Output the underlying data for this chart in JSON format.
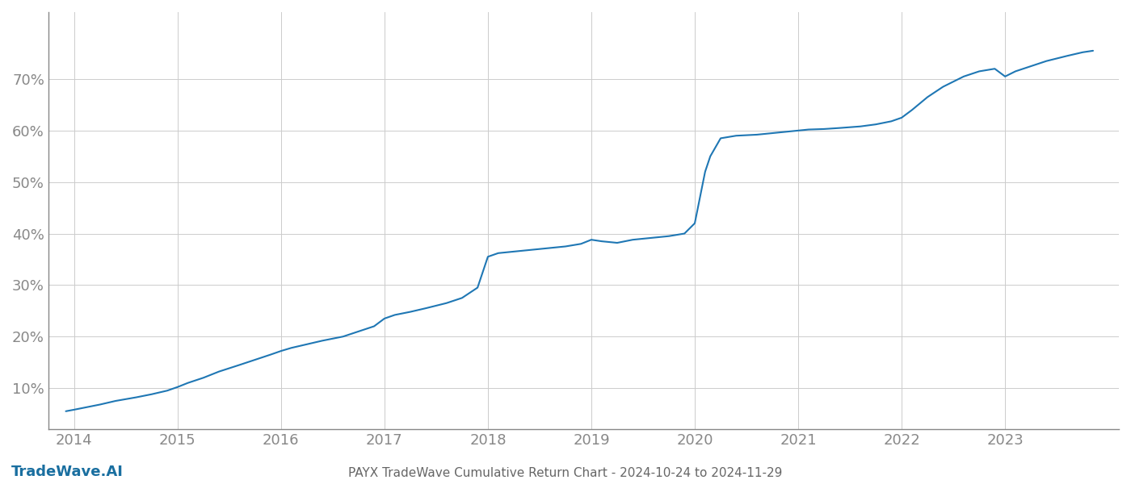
{
  "title": "PAYX TradeWave Cumulative Return Chart - 2024-10-24 to 2024-11-29",
  "watermark": "TradeWave.AI",
  "line_color": "#1f77b4",
  "background_color": "#ffffff",
  "grid_color": "#cccccc",
  "x_years": [
    2013.92,
    2014.0,
    2014.1,
    2014.25,
    2014.4,
    2014.6,
    2014.75,
    2014.9,
    2015.0,
    2015.1,
    2015.25,
    2015.4,
    2015.6,
    2015.75,
    2015.9,
    2016.0,
    2016.1,
    2016.25,
    2016.4,
    2016.6,
    2016.75,
    2016.9,
    2017.0,
    2017.1,
    2017.25,
    2017.4,
    2017.6,
    2017.75,
    2017.9,
    2018.0,
    2018.1,
    2018.25,
    2018.4,
    2018.6,
    2018.75,
    2018.9,
    2019.0,
    2019.1,
    2019.25,
    2019.4,
    2019.6,
    2019.75,
    2019.9,
    2020.0,
    2020.05,
    2020.1,
    2020.15,
    2020.25,
    2020.4,
    2020.6,
    2020.75,
    2020.9,
    2021.0,
    2021.1,
    2021.25,
    2021.4,
    2021.6,
    2021.75,
    2021.9,
    2022.0,
    2022.1,
    2022.25,
    2022.4,
    2022.6,
    2022.75,
    2022.9,
    2023.0,
    2023.1,
    2023.25,
    2023.4,
    2023.6,
    2023.75,
    2023.85
  ],
  "y_values": [
    5.5,
    5.8,
    6.2,
    6.8,
    7.5,
    8.2,
    8.8,
    9.5,
    10.2,
    11.0,
    12.0,
    13.2,
    14.5,
    15.5,
    16.5,
    17.2,
    17.8,
    18.5,
    19.2,
    20.0,
    21.0,
    22.0,
    23.5,
    24.2,
    24.8,
    25.5,
    26.5,
    27.5,
    29.5,
    35.5,
    36.2,
    36.5,
    36.8,
    37.2,
    37.5,
    38.0,
    38.8,
    38.5,
    38.2,
    38.8,
    39.2,
    39.5,
    40.0,
    42.0,
    47.0,
    52.0,
    55.0,
    58.5,
    59.0,
    59.2,
    59.5,
    59.8,
    60.0,
    60.2,
    60.3,
    60.5,
    60.8,
    61.2,
    61.8,
    62.5,
    64.0,
    66.5,
    68.5,
    70.5,
    71.5,
    72.0,
    70.5,
    71.5,
    72.5,
    73.5,
    74.5,
    75.2,
    75.5
  ],
  "xlim": [
    2013.75,
    2024.1
  ],
  "ylim": [
    2,
    83
  ],
  "xticks": [
    2014,
    2015,
    2016,
    2017,
    2018,
    2019,
    2020,
    2021,
    2022,
    2023
  ],
  "yticks": [
    10,
    20,
    30,
    40,
    50,
    60,
    70
  ],
  "tick_label_color": "#888888",
  "axis_color": "#888888",
  "spine_color": "#888888",
  "title_color": "#666666",
  "watermark_color": "#1a6fa0",
  "line_width": 1.5,
  "title_fontsize": 11,
  "tick_fontsize": 13,
  "watermark_fontsize": 13
}
